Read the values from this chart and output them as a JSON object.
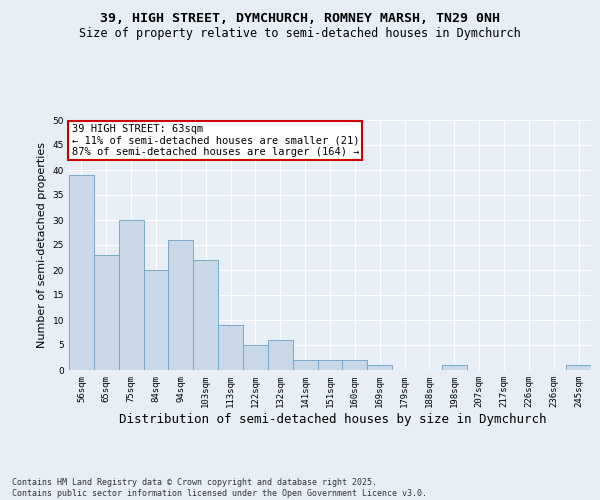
{
  "title_line1": "39, HIGH STREET, DYMCHURCH, ROMNEY MARSH, TN29 0NH",
  "title_line2": "Size of property relative to semi-detached houses in Dymchurch",
  "xlabel": "Distribution of semi-detached houses by size in Dymchurch",
  "ylabel": "Number of semi-detached properties",
  "categories": [
    "56sqm",
    "65sqm",
    "75sqm",
    "84sqm",
    "94sqm",
    "103sqm",
    "113sqm",
    "122sqm",
    "132sqm",
    "141sqm",
    "151sqm",
    "160sqm",
    "169sqm",
    "179sqm",
    "188sqm",
    "198sqm",
    "207sqm",
    "217sqm",
    "226sqm",
    "236sqm",
    "245sqm"
  ],
  "values": [
    39,
    23,
    30,
    20,
    26,
    22,
    9,
    5,
    6,
    2,
    2,
    2,
    1,
    0,
    0,
    1,
    0,
    0,
    0,
    0,
    1
  ],
  "bar_color": "#c8d8e8",
  "bar_edge_color": "#7aaac8",
  "annotation_box_text": "39 HIGH STREET: 63sqm\n← 11% of semi-detached houses are smaller (21)\n87% of semi-detached houses are larger (164) →",
  "annotation_box_facecolor": "#ffffff",
  "annotation_box_edgecolor": "#cc0000",
  "ylim": [
    0,
    50
  ],
  "yticks": [
    0,
    5,
    10,
    15,
    20,
    25,
    30,
    35,
    40,
    45,
    50
  ],
  "bg_color": "#e8eef6",
  "grid_color": "#ffffff",
  "footnote": "Contains HM Land Registry data © Crown copyright and database right 2025.\nContains public sector information licensed under the Open Government Licence v3.0.",
  "title_fontsize": 9.5,
  "subtitle_fontsize": 8.5,
  "ylabel_fontsize": 8,
  "xlabel_fontsize": 9,
  "tick_fontsize": 6.5,
  "annotation_fontsize": 7.5,
  "footnote_fontsize": 6
}
